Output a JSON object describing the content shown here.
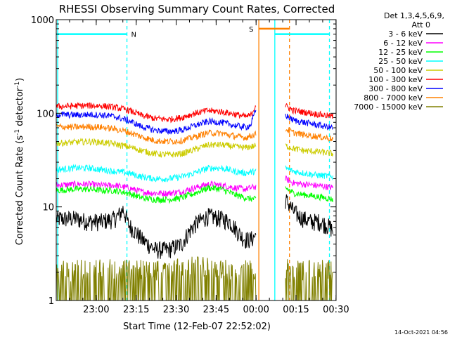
{
  "chart_data": {
    "type": "line",
    "title": "RHESSI Observing Summary Count Rates, Corrected",
    "xlabel": "Start Time (12-Feb-07 22:52:02)",
    "ylabel_main": "Corrected Count Rate (s",
    "ylabel_sup1": "-1",
    "ylabel_mid": " detector",
    "ylabel_sup2": "-1",
    "ylabel_end": ")",
    "yscale": "log",
    "ylim": [
      1,
      1000
    ],
    "xlim_minutes": [
      -7.03,
      98.0
    ],
    "x_tick_labels": [
      "23:00",
      "23:15",
      "23:30",
      "23:45",
      "00:00",
      "00:15",
      "00:30"
    ],
    "x_tick_minutes": [
      7.97,
      22.97,
      37.97,
      52.97,
      67.97,
      82.97,
      97.97
    ],
    "y_ticks": [
      1,
      10,
      100,
      1000
    ],
    "y_tick_labels": [
      "1",
      "10",
      "100",
      "1000"
    ],
    "legend_header": [
      "Det 1,3,4,5,6,9,",
      "Att 0"
    ],
    "legend_position": "top-right, outside plot",
    "footer_date": "14-Oct-2021 04:56",
    "series": [
      {
        "name": "3 - 6 keV",
        "color": "#000000",
        "segments": [
          {
            "minutes": [
              -7,
              0,
              5,
              10,
              15,
              17,
              18,
              20,
              25,
              30,
              35,
              40,
              45,
              50,
              55,
              58,
              60,
              62,
              64,
              66,
              68
            ],
            "values": [
              7.5,
              7.5,
              7.0,
              7.0,
              7.5,
              8.5,
              9.5,
              6.5,
              4.5,
              3.5,
              3.5,
              4.0,
              6.5,
              8.0,
              7.5,
              7.0,
              6.0,
              5.0,
              4.5,
              4.5,
              5.0
            ]
          },
          {
            "minutes": [
              79,
              82,
              84,
              86,
              88,
              90,
              92,
              94,
              96,
              97
            ],
            "values": [
              12,
              9,
              8,
              7.5,
              7.0,
              7.0,
              7.0,
              6.5,
              6.0,
              5.5
            ]
          }
        ]
      },
      {
        "name": "6 - 12 keV",
        "color": "#ff00ff",
        "segments": [
          {
            "minutes": [
              -7,
              0,
              5,
              10,
              15,
              20,
              25,
              30,
              35,
              40,
              45,
              50,
              55,
              60,
              64,
              68
            ],
            "values": [
              17,
              17.5,
              17.5,
              17,
              17,
              16,
              14.5,
              14,
              14,
              14.5,
              16,
              17.5,
              17,
              16,
              15.5,
              16.5
            ]
          },
          {
            "minutes": [
              79,
              82,
              86,
              90,
              94,
              97
            ],
            "values": [
              20,
              18,
              17.5,
              17,
              16.5,
              16
            ]
          }
        ]
      },
      {
        "name": "12 - 25 keV",
        "color": "#00ff00",
        "segments": [
          {
            "minutes": [
              -7,
              0,
              5,
              10,
              15,
              20,
              25,
              30,
              35,
              40,
              45,
              50,
              55,
              60,
              64,
              68
            ],
            "values": [
              15,
              15.5,
              15.5,
              15,
              15,
              14,
              12.5,
              12,
              12,
              12.5,
              14,
              16,
              15.5,
              13.5,
              12.5,
              12
            ]
          },
          {
            "minutes": [
              79,
              82,
              86,
              90,
              94,
              97
            ],
            "values": [
              16,
              14,
              13.5,
              13,
              12.5,
              12
            ]
          }
        ]
      },
      {
        "name": "25 - 50 keV",
        "color": "#00ffff",
        "segments": [
          {
            "minutes": [
              -7,
              0,
              5,
              10,
              15,
              20,
              25,
              30,
              35,
              40,
              45,
              50,
              55,
              60,
              64,
              68
            ],
            "values": [
              25,
              26,
              26,
              25,
              24,
              23,
              21,
              20,
              20,
              21,
              23,
              26,
              26,
              24,
              23,
              24
            ]
          },
          {
            "minutes": [
              79,
              82,
              86,
              90,
              94,
              97
            ],
            "values": [
              26,
              24,
              23,
              22,
              21.5,
              21
            ]
          }
        ]
      },
      {
        "name": "50 - 100 keV",
        "color": "#cccc00",
        "segments": [
          {
            "minutes": [
              -7,
              0,
              5,
              10,
              15,
              20,
              25,
              30,
              35,
              40,
              45,
              50,
              55,
              60,
              64,
              68
            ],
            "values": [
              48,
              49,
              50,
              49,
              47,
              44,
              40,
              37,
              36,
              37,
              41,
              46,
              46,
              44,
              43,
              45
            ]
          },
          {
            "minutes": [
              79,
              82,
              86,
              90,
              94,
              97
            ],
            "values": [
              45,
              42,
              40,
              39,
              38,
              37
            ]
          }
        ]
      },
      {
        "name": "100 - 300 keV",
        "color": "#ff0000",
        "segments": [
          {
            "minutes": [
              -7,
              0,
              5,
              10,
              15,
              20,
              25,
              30,
              35,
              40,
              45,
              50,
              55,
              60,
              64,
              66,
              68
            ],
            "values": [
              118,
              120,
              121,
              120,
              116,
              108,
              95,
              88,
              86,
              90,
              100,
              107,
              104,
              98,
              92,
              95,
              125
            ]
          },
          {
            "minutes": [
              79,
              82,
              86,
              90,
              94,
              97
            ],
            "values": [
              120,
              107,
              103,
              99,
              95,
              92
            ]
          }
        ]
      },
      {
        "name": "300 - 800 keV",
        "color": "#0000ff",
        "segments": [
          {
            "minutes": [
              -7,
              0,
              5,
              10,
              15,
              20,
              25,
              30,
              35,
              40,
              45,
              50,
              55,
              60,
              64,
              66,
              68
            ],
            "values": [
              97,
              96,
              97,
              96,
              92,
              84,
              72,
              66,
              64,
              66,
              74,
              82,
              80,
              74,
              71,
              75,
              110
            ]
          },
          {
            "minutes": [
              79,
              82,
              86,
              90,
              94,
              97
            ],
            "values": [
              95,
              84,
              80,
              76,
              72,
              70
            ]
          }
        ]
      },
      {
        "name": "800 - 7000 keV",
        "color": "#ff8000",
        "segments": [
          {
            "minutes": [
              -7,
              0,
              5,
              10,
              15,
              20,
              25,
              30,
              35,
              40,
              45,
              50,
              55,
              60,
              64,
              68
            ],
            "values": [
              72,
              71,
              72,
              71,
              68,
              63,
              56,
              51,
              50,
              51,
              56,
              62,
              61,
              57,
              55,
              60
            ]
          },
          {
            "minutes": [
              79,
              82,
              86,
              90,
              94,
              97
            ],
            "values": [
              68,
              62,
              59,
              57,
              55,
              53
            ]
          }
        ]
      },
      {
        "name": "7000 - 15000 keV",
        "color": "#808000",
        "segments": [
          {
            "minutes": [
              -7,
              0,
              5,
              10,
              15,
              18,
              20,
              25,
              30,
              35,
              40,
              45,
              50,
              55,
              60,
              64,
              68
            ],
            "values": [
              1.6,
              1.6,
              1.6,
              1.8,
              1.6,
              1.7,
              1.6,
              1.6,
              1.6,
              1.6,
              1.7,
              1.8,
              1.7,
              1.6,
              1.6,
              1.6,
              1.7
            ]
          },
          {
            "minutes": [
              79,
              82,
              86,
              90,
              94,
              97
            ],
            "values": [
              1.7,
              1.6,
              1.6,
              1.6,
              1.6,
              1.6
            ]
          }
        ]
      }
    ],
    "night_marker": {
      "label": "N",
      "color": "#00ffff",
      "start_minute": -7,
      "end_minute": 19.5,
      "value": 700
    },
    "saa_marker": {
      "label": "S",
      "color": "#ff8000",
      "start_minute": 69,
      "end_minute": 80.5,
      "value": 800
    },
    "vertical_lines": [
      {
        "minute": -6.5,
        "color": "#00ffff",
        "style": "solid"
      },
      {
        "minute": 19.5,
        "color": "#00ffff",
        "style": "dashed"
      },
      {
        "minute": 69,
        "color": "#ff8000",
        "style": "solid"
      },
      {
        "minute": 75,
        "color": "#00ffff",
        "style": "solid"
      },
      {
        "minute": 80.5,
        "color": "#ff8000",
        "style": "dashed"
      },
      {
        "minute": 95.5,
        "color": "#00ffff",
        "style": "dashed"
      }
    ],
    "night_end_right_minute": 95.5,
    "night_right_start_minute": 75
  }
}
